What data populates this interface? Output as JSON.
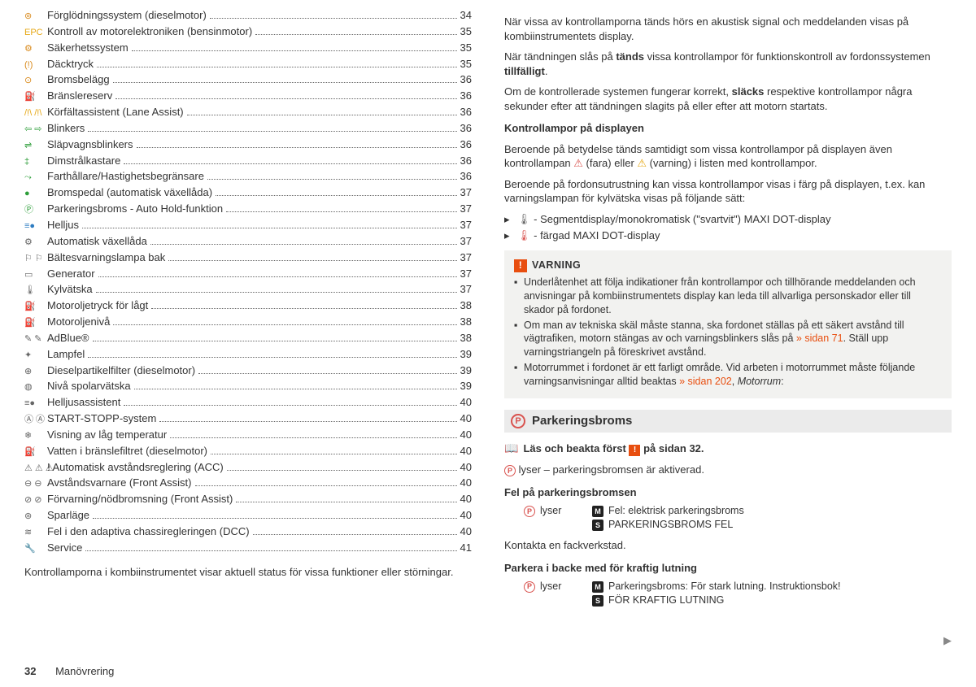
{
  "toc": [
    {
      "icon": "⊚",
      "icon_color": "#d98a1c",
      "label": "Förglödningssystem (dieselmotor)",
      "page": "34"
    },
    {
      "icon": "EPC",
      "icon_color": "#e6a817",
      "label": "Kontroll av motorelektroniken (bensinmotor)",
      "page": "35"
    },
    {
      "icon": "⚙",
      "icon_color": "#d98a1c",
      "label": "Säkerhetssystem",
      "page": "35"
    },
    {
      "icon": "(!)",
      "icon_color": "#d98a1c",
      "label": "Däcktryck",
      "page": "35"
    },
    {
      "icon": "⊙",
      "icon_color": "#d98a1c",
      "label": "Bromsbelägg",
      "page": "36"
    },
    {
      "icon": "⛽",
      "icon_color": "#d98a1c",
      "label": "Bränslereserv",
      "page": "36"
    },
    {
      "icon": "/!\\ /!\\",
      "icon_color": "#e6a817",
      "label": "Körfältassistent (Lane Assist)",
      "page": "36"
    },
    {
      "icon": "⇦ ⇨",
      "icon_color": "#2e9e3a",
      "label": "Blinkers",
      "page": "36"
    },
    {
      "icon": "⇌",
      "icon_color": "#2e9e3a",
      "label": "Släpvagnsblinkers",
      "page": "36"
    },
    {
      "icon": "‡",
      "icon_color": "#2e9e3a",
      "label": "Dimstrålkastare",
      "page": "36"
    },
    {
      "icon": "⤳",
      "icon_color": "#2e9e3a",
      "label": "Farthållare/Hastighetsbegränsare",
      "page": "36"
    },
    {
      "icon": "●",
      "icon_color": "#2e9e3a",
      "label": "Bromspedal (automatisk växellåda)",
      "page": "37"
    },
    {
      "icon": "Ⓟ",
      "icon_color": "#2e9e3a",
      "label": "Parkeringsbroms - Auto Hold-funktion",
      "page": "37"
    },
    {
      "icon": "≡●",
      "icon_color": "#2d7cc1",
      "label": "Helljus",
      "page": "37"
    },
    {
      "icon": "⚙",
      "icon_color": "#666",
      "label": "Automatisk växellåda",
      "page": "37"
    },
    {
      "icon": "⚐ ⚐",
      "icon_color": "#666",
      "label": "Bältesvarningslampa bak",
      "page": "37"
    },
    {
      "icon": "▭",
      "icon_color": "#666",
      "label": "Generator",
      "page": "37"
    },
    {
      "icon": "🌡",
      "icon_color": "#666",
      "label": "Kylvätska",
      "page": "37"
    },
    {
      "icon": "⛽",
      "icon_color": "#666",
      "label": "Motoroljetryck för lågt",
      "page": "38"
    },
    {
      "icon": "⛽",
      "icon_color": "#666",
      "label": "Motoroljenivå",
      "page": "38"
    },
    {
      "icon": "✎ ✎",
      "icon_color": "#666",
      "label": "AdBlue®",
      "page": "38"
    },
    {
      "icon": "✦",
      "icon_color": "#666",
      "label": "Lampfel",
      "page": "39"
    },
    {
      "icon": "⊕",
      "icon_color": "#666",
      "label": "Dieselpartikelfilter (dieselmotor)",
      "page": "39"
    },
    {
      "icon": "◍",
      "icon_color": "#666",
      "label": "Nivå spolarvätska",
      "page": "39"
    },
    {
      "icon": "≡●",
      "icon_color": "#666",
      "label": "Helljusassistent",
      "page": "40"
    },
    {
      "icon": "Ⓐ Ⓐ",
      "icon_color": "#666",
      "label": "START-STOPP-system",
      "page": "40"
    },
    {
      "icon": "❄",
      "icon_color": "#666",
      "label": "Visning av låg temperatur",
      "page": "40"
    },
    {
      "icon": "⛽",
      "icon_color": "#666",
      "label": "Vatten i bränslefiltret (dieselmotor)",
      "page": "40"
    },
    {
      "icon": "⚠ ⚠ ⚠",
      "icon_color": "#666",
      "label": "! Automatisk avståndsreglering (ACC)",
      "page": "40"
    },
    {
      "icon": "⊖ ⊖",
      "icon_color": "#666",
      "label": "Avståndsvarnare (Front Assist)",
      "page": "40"
    },
    {
      "icon": "⊘ ⊘",
      "icon_color": "#666",
      "label": "Förvarning/nödbromsning (Front Assist)",
      "page": "40"
    },
    {
      "icon": "⊛",
      "icon_color": "#666",
      "label": "Sparläge",
      "page": "40"
    },
    {
      "icon": "≋",
      "icon_color": "#666",
      "label": "Fel i den adaptiva chassiregleringen (DCC)",
      "page": "40"
    },
    {
      "icon": "🔧",
      "icon_color": "#666",
      "label": "Service",
      "page": "41"
    }
  ],
  "left_footer_text": "Kontrollamporna i kombiinstrumentet visar aktuell status för vissa funktioner eller störningar.",
  "right": {
    "p1": "När vissa av kontrollamporna tänds hörs en akustisk signal och meddelanden visas på kombiinstrumentets display.",
    "p2_a": "När tändningen slås på ",
    "p2_b": "tänds",
    "p2_c": " vissa kontrollampor för funktionskontroll av fordonssystemen ",
    "p2_d": "tillfälligt",
    "p2_e": ".",
    "p3_a": "Om de kontrollerade systemen fungerar korrekt, ",
    "p3_b": "släcks",
    "p3_c": " respektive kontrollampor några sekunder efter att tändningen slagits på eller efter att motorn startats.",
    "h1": "Kontrollampor på displayen",
    "p4_a": "Beroende på betydelse tänds samtidigt som vissa kontrollampor på displayen även kontrollampan ",
    "p4_b": " (fara) eller ",
    "p4_c": " (varning) i listen med kontrollampor.",
    "p5": "Beroende på fordonsutrustning kan vissa kontrollampor visas i färg på displayen, t.ex. kan varningslampan för kylvätska visas på följande sätt:",
    "b1": " - Segmentdisplay/monokromatisk (\"svartvit\") MAXI DOT-display",
    "b2": " - färgad MAXI DOT-display",
    "warn_head": "VARNING",
    "w1": "Underlåtenhet att följa indikationer från kontrollampor och tillhörande meddelanden och anvisningar på kombiinstrumentets display kan leda till allvarliga personskador eller till skador på fordonet.",
    "w2_a": "Om man av tekniska skäl måste stanna, ska fordonet ställas på ett säkert avstånd till vägtrafiken, motorn stängas av och varningsblinkers slås på ",
    "w2_link": "» sidan 71",
    "w2_b": ". Ställ upp varningstriangeln på föreskrivet avstånd.",
    "w3_a": "Motorrummet i fordonet är ett farligt område. Vid arbeten i motorrummet måste följande varningsanvisningar alltid beaktas ",
    "w3_link": "» sidan 202",
    "w3_b": ", ",
    "w3_i": "Motorrum",
    "w3_c": ":",
    "section_title": "Parkeringsbroms",
    "read_first_a": "Läs och beakta först ",
    "read_first_b": " på sidan 32.",
    "pb_active": " lyser – parkeringsbromsen är aktiverad.",
    "pb_fault_head": "Fel på parkeringsbromsen",
    "pb_lyser": "lyser",
    "pb_m1": "Fel: elektrisk parkeringsbroms",
    "pb_s1": "PARKERINGSBROMS FEL",
    "pb_contact": "Kontakta en fackverkstad.",
    "pb_slope_head": "Parkera i backe med för kraftig lutning",
    "pb_m2": "Parkeringsbroms: För stark lutning. Instruktionsbok!",
    "pb_s2": "FÖR KRAFTIG LUTNING"
  },
  "footer": {
    "page": "32",
    "section": "Manövrering"
  }
}
